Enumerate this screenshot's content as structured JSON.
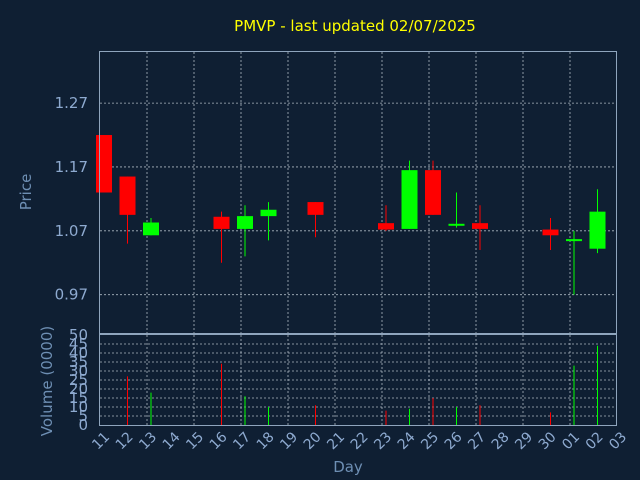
{
  "chart_data": [
    {
      "type": "candlestick",
      "title": "PMVP - last updated 02/07/2025",
      "ylabel": "Price",
      "ylim": [
        0.91,
        1.35
      ],
      "yticks": [
        0.97,
        1.07,
        1.17,
        1.27
      ],
      "ytick_labels": [
        "0.97",
        "1.07",
        "1.17",
        "1.27"
      ],
      "grid": true,
      "colors": {
        "up": "#00ff00",
        "down": "#ff0000"
      },
      "candles": [
        {
          "x": "11",
          "open": 1.22,
          "high": 1.22,
          "low": 1.13,
          "close": 1.13
        },
        {
          "x": "12",
          "open": 1.155,
          "high": 1.155,
          "low": 1.05,
          "close": 1.095
        },
        {
          "x": "13",
          "open": 1.063,
          "high": 1.09,
          "low": 1.063,
          "close": 1.083
        },
        {
          "x": "16",
          "open": 1.092,
          "high": 1.1,
          "low": 1.02,
          "close": 1.073
        },
        {
          "x": "17",
          "open": 1.073,
          "high": 1.11,
          "low": 1.03,
          "close": 1.093
        },
        {
          "x": "18",
          "open": 1.093,
          "high": 1.115,
          "low": 1.055,
          "close": 1.103
        },
        {
          "x": "20",
          "open": 1.115,
          "high": 1.115,
          "low": 1.06,
          "close": 1.095
        },
        {
          "x": "23",
          "open": 1.082,
          "high": 1.11,
          "low": 1.07,
          "close": 1.072
        },
        {
          "x": "24",
          "open": 1.073,
          "high": 1.18,
          "low": 1.073,
          "close": 1.165
        },
        {
          "x": "25",
          "open": 1.165,
          "high": 1.18,
          "low": 1.095,
          "close": 1.095
        },
        {
          "x": "26",
          "open": 1.078,
          "high": 1.13,
          "low": 1.075,
          "close": 1.081
        },
        {
          "x": "27",
          "open": 1.082,
          "high": 1.11,
          "low": 1.04,
          "close": 1.073
        },
        {
          "x": "30",
          "open": 1.072,
          "high": 1.09,
          "low": 1.04,
          "close": 1.063
        },
        {
          "x": "01",
          "open": 1.055,
          "high": 1.07,
          "low": 0.97,
          "close": 1.057
        },
        {
          "x": "02",
          "open": 1.042,
          "high": 1.135,
          "low": 1.035,
          "close": 1.1
        }
      ]
    },
    {
      "type": "bar",
      "ylabel": "Volume (0000)",
      "xlabel": "Day",
      "ylim": [
        0,
        50
      ],
      "yticks": [
        0,
        5,
        10,
        15,
        20,
        25,
        30,
        35,
        40,
        45,
        50
      ],
      "ytick_labels": [
        "0",
        "5",
        "10",
        "15",
        "20",
        "25",
        "30",
        "35",
        "40",
        "45",
        "50"
      ],
      "grid": true,
      "categories": [
        "11",
        "12",
        "13",
        "14",
        "15",
        "16",
        "17",
        "18",
        "19",
        "20",
        "21",
        "22",
        "23",
        "24",
        "25",
        "26",
        "27",
        "28",
        "29",
        "30",
        "01",
        "02",
        "03"
      ],
      "bars": [
        {
          "x": "12",
          "value": 27,
          "color": "#ff0000"
        },
        {
          "x": "13",
          "value": 18,
          "color": "#00ff00"
        },
        {
          "x": "16",
          "value": 34,
          "color": "#ff0000"
        },
        {
          "x": "17",
          "value": 16,
          "color": "#00ff00"
        },
        {
          "x": "18",
          "value": 10,
          "color": "#00ff00"
        },
        {
          "x": "20",
          "value": 11,
          "color": "#ff0000"
        },
        {
          "x": "23",
          "value": 8,
          "color": "#ff0000"
        },
        {
          "x": "24",
          "value": 9,
          "color": "#00ff00"
        },
        {
          "x": "25",
          "value": 15,
          "color": "#ff0000"
        },
        {
          "x": "26",
          "value": 10,
          "color": "#00ff00"
        },
        {
          "x": "27",
          "value": 11,
          "color": "#ff0000"
        },
        {
          "x": "30",
          "value": 7,
          "color": "#ff0000"
        },
        {
          "x": "01",
          "value": 33,
          "color": "#00ff00"
        },
        {
          "x": "02",
          "value": 44,
          "color": "#00ff00"
        }
      ]
    }
  ]
}
